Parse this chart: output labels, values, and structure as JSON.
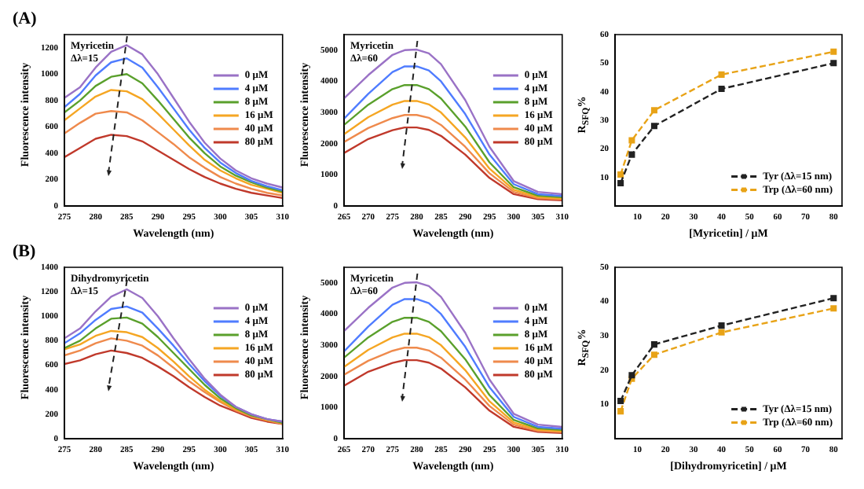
{
  "chart_data": [
    {
      "type": "line",
      "title": "(A)",
      "xlabel": "Wavelength (nm)",
      "ylabel": "Fluorescence intensity",
      "annotations": [
        "Myricetin",
        "Δλ=15"
      ],
      "x": [
        275,
        277.5,
        280,
        282.5,
        285,
        287.5,
        290,
        292.5,
        295,
        297.5,
        300,
        302.5,
        305,
        307.5,
        310
      ],
      "xlim": [
        275,
        310
      ],
      "xticks": [
        275,
        280,
        285,
        290,
        295,
        300,
        305,
        310
      ],
      "ylim": [
        0,
        1300
      ],
      "yticks": [
        0,
        200,
        400,
        600,
        800,
        1000,
        1200
      ],
      "legend": "top right",
      "line_style": "solid",
      "series": [
        {
          "name": "0 μM",
          "color": "#9a72c6",
          "values": [
            820,
            900,
            1050,
            1170,
            1220,
            1150,
            1000,
            820,
            640,
            480,
            360,
            270,
            210,
            170,
            140
          ]
        },
        {
          "name": "4 μM",
          "color": "#4f7cff",
          "values": [
            750,
            850,
            990,
            1090,
            1120,
            1050,
            900,
            740,
            580,
            440,
            330,
            250,
            190,
            150,
            120
          ]
        },
        {
          "name": "8 μM",
          "color": "#5aa02c",
          "values": [
            710,
            800,
            910,
            980,
            1000,
            930,
            800,
            660,
            520,
            400,
            300,
            230,
            180,
            140,
            110
          ]
        },
        {
          "name": "16 μM",
          "color": "#f5a623",
          "values": [
            650,
            740,
            830,
            880,
            870,
            810,
            700,
            580,
            460,
            350,
            270,
            210,
            160,
            130,
            100
          ]
        },
        {
          "name": "40 μM",
          "color": "#ef8a4c",
          "values": [
            550,
            630,
            700,
            720,
            710,
            650,
            560,
            470,
            370,
            290,
            220,
            170,
            130,
            100,
            80
          ]
        },
        {
          "name": "80 μM",
          "color": "#c0392b",
          "values": [
            370,
            440,
            510,
            540,
            530,
            490,
            420,
            350,
            280,
            220,
            170,
            130,
            100,
            80,
            60
          ]
        }
      ]
    },
    {
      "type": "line",
      "xlabel": "Wavelength (nm)",
      "ylabel": "Fluorescence intensity",
      "annotations": [
        "Myricetin",
        "Δλ=60"
      ],
      "x": [
        265,
        270,
        275,
        277.5,
        280,
        282.5,
        285,
        290,
        295,
        300,
        305,
        310
      ],
      "xlim": [
        265,
        310
      ],
      "xticks": [
        265,
        270,
        275,
        280,
        285,
        290,
        295,
        300,
        305,
        310
      ],
      "ylim": [
        0,
        5500
      ],
      "yticks": [
        0,
        1000,
        2000,
        3000,
        4000,
        5000
      ],
      "legend": "top right",
      "line_style": "solid",
      "series": [
        {
          "name": "0 μM",
          "color": "#9a72c6",
          "values": [
            3450,
            4200,
            4850,
            5000,
            5020,
            4900,
            4550,
            3400,
            1900,
            800,
            450,
            380
          ]
        },
        {
          "name": "4 μM",
          "color": "#4f7cff",
          "values": [
            2800,
            3600,
            4300,
            4480,
            4480,
            4350,
            4000,
            2950,
            1650,
            700,
            380,
            320
          ]
        },
        {
          "name": "8 μM",
          "color": "#5aa02c",
          "values": [
            2600,
            3250,
            3750,
            3880,
            3880,
            3750,
            3450,
            2550,
            1400,
            600,
            330,
            280
          ]
        },
        {
          "name": "16 μM",
          "color": "#f5a623",
          "values": [
            2300,
            2850,
            3250,
            3370,
            3370,
            3260,
            3000,
            2200,
            1200,
            520,
            290,
            240
          ]
        },
        {
          "name": "40 μM",
          "color": "#ef8a4c",
          "values": [
            2050,
            2500,
            2820,
            2920,
            2920,
            2830,
            2600,
            1900,
            1050,
            450,
            250,
            210
          ]
        },
        {
          "name": "80 μM",
          "color": "#c0392b",
          "values": [
            1700,
            2150,
            2430,
            2520,
            2520,
            2440,
            2250,
            1650,
            900,
            380,
            220,
            180
          ]
        }
      ]
    },
    {
      "type": "line",
      "xlabel": "[Myricetin] / μM",
      "ylabel": "R$_{SFQ}$%",
      "x": [
        4,
        8,
        16,
        40,
        80
      ],
      "xlim": [
        2,
        83
      ],
      "xticks": [
        10,
        20,
        30,
        40,
        50,
        60,
        70,
        80
      ],
      "ylim": [
        0,
        60
      ],
      "yticks": [
        10,
        20,
        30,
        40,
        50,
        60
      ],
      "legend": "bottom right",
      "marker": "square",
      "line_style": "dashed",
      "series": [
        {
          "name": "Tyr (Δλ=15 nm)",
          "color": "#222222",
          "values": [
            8,
            18,
            28,
            41,
            50
          ]
        },
        {
          "name": "Trp (Δλ=60 nm)",
          "color": "#e8a317",
          "values": [
            11,
            23,
            33.5,
            46,
            54
          ]
        }
      ]
    },
    {
      "type": "line",
      "title": "(B)",
      "xlabel": "Wavelength (nm)",
      "ylabel": "Fluorescence intensity",
      "annotations": [
        "Dihydromyricetin",
        "Δλ=15"
      ],
      "x": [
        275,
        277.5,
        280,
        282.5,
        285,
        287.5,
        290,
        292.5,
        295,
        297.5,
        300,
        302.5,
        305,
        307.5,
        310
      ],
      "xlim": [
        275,
        310
      ],
      "xticks": [
        275,
        280,
        285,
        290,
        295,
        300,
        305,
        310
      ],
      "ylim": [
        0,
        1400
      ],
      "yticks": [
        0,
        200,
        400,
        600,
        800,
        1000,
        1200,
        1400
      ],
      "legend": "top right",
      "line_style": "solid",
      "series": [
        {
          "name": "0 μM",
          "color": "#9a72c6",
          "values": [
            820,
            900,
            1040,
            1160,
            1220,
            1150,
            1000,
            820,
            650,
            490,
            360,
            260,
            200,
            160,
            140
          ]
        },
        {
          "name": "4 μM",
          "color": "#4f7cff",
          "values": [
            780,
            860,
            970,
            1060,
            1080,
            1030,
            900,
            760,
            610,
            470,
            350,
            260,
            200,
            160,
            140
          ]
        },
        {
          "name": "8 μM",
          "color": "#5aa02c",
          "values": [
            740,
            800,
            900,
            980,
            990,
            940,
            830,
            700,
            570,
            440,
            330,
            250,
            190,
            160,
            130
          ]
        },
        {
          "name": "16 μM",
          "color": "#f5a623",
          "values": [
            730,
            770,
            840,
            880,
            870,
            830,
            740,
            630,
            510,
            400,
            310,
            240,
            190,
            150,
            130
          ]
        },
        {
          "name": "40 μM",
          "color": "#ef8a4c",
          "values": [
            680,
            720,
            780,
            820,
            800,
            760,
            680,
            580,
            470,
            380,
            300,
            230,
            180,
            150,
            120
          ]
        },
        {
          "name": "80 μM",
          "color": "#c0392b",
          "values": [
            610,
            640,
            690,
            720,
            700,
            660,
            590,
            510,
            420,
            340,
            270,
            220,
            170,
            140,
            120
          ]
        }
      ]
    },
    {
      "type": "line",
      "xlabel": "Wavelength (nm)",
      "ylabel": "Fluorescence intensity",
      "annotations": [
        "Myricetin",
        "Δλ=60"
      ],
      "x": [
        265,
        270,
        275,
        277.5,
        280,
        282.5,
        285,
        290,
        295,
        300,
        305,
        310
      ],
      "xlim": [
        265,
        310
      ],
      "xticks": [
        265,
        270,
        275,
        280,
        285,
        290,
        295,
        300,
        305,
        310
      ],
      "ylim": [
        0,
        5500
      ],
      "yticks": [
        0,
        1000,
        2000,
        3000,
        4000,
        5000
      ],
      "legend": "top right",
      "line_style": "solid",
      "series": [
        {
          "name": "0 μM",
          "color": "#9a72c6",
          "values": [
            3450,
            4200,
            4850,
            5000,
            5020,
            4900,
            4550,
            3400,
            1900,
            800,
            450,
            380
          ]
        },
        {
          "name": "4 μM",
          "color": "#4f7cff",
          "values": [
            2800,
            3600,
            4300,
            4480,
            4480,
            4350,
            4000,
            2950,
            1650,
            700,
            380,
            320
          ]
        },
        {
          "name": "8 μM",
          "color": "#5aa02c",
          "values": [
            2600,
            3250,
            3750,
            3880,
            3880,
            3750,
            3450,
            2550,
            1400,
            600,
            330,
            280
          ]
        },
        {
          "name": "16 μM",
          "color": "#f5a623",
          "values": [
            2300,
            2850,
            3250,
            3370,
            3370,
            3260,
            3000,
            2200,
            1200,
            520,
            290,
            240
          ]
        },
        {
          "name": "40 μM",
          "color": "#ef8a4c",
          "values": [
            2050,
            2500,
            2820,
            2920,
            2920,
            2830,
            2600,
            1900,
            1050,
            450,
            250,
            210
          ]
        },
        {
          "name": "80 μM",
          "color": "#c0392b",
          "values": [
            1700,
            2150,
            2430,
            2520,
            2520,
            2440,
            2250,
            1650,
            900,
            380,
            220,
            180
          ]
        }
      ]
    },
    {
      "type": "line",
      "xlabel": "[Dihydromyricetin] / μM",
      "ylabel": "R$_{SFQ}$%",
      "x": [
        4,
        8,
        16,
        40,
        80
      ],
      "xlim": [
        2,
        83
      ],
      "xticks": [
        10,
        20,
        30,
        40,
        50,
        60,
        70,
        80
      ],
      "ylim": [
        0,
        50
      ],
      "yticks": [
        10,
        20,
        30,
        40,
        50
      ],
      "legend": "bottom right",
      "marker": "square",
      "line_style": "dashed",
      "series": [
        {
          "name": "Tyr (Δλ=15 nm)",
          "color": "#222222",
          "values": [
            11,
            18.5,
            27.5,
            33,
            41
          ]
        },
        {
          "name": "Trp (Δλ=60 nm)",
          "color": "#e8a317",
          "values": [
            8,
            17.5,
            24.5,
            31,
            38
          ]
        }
      ]
    }
  ]
}
